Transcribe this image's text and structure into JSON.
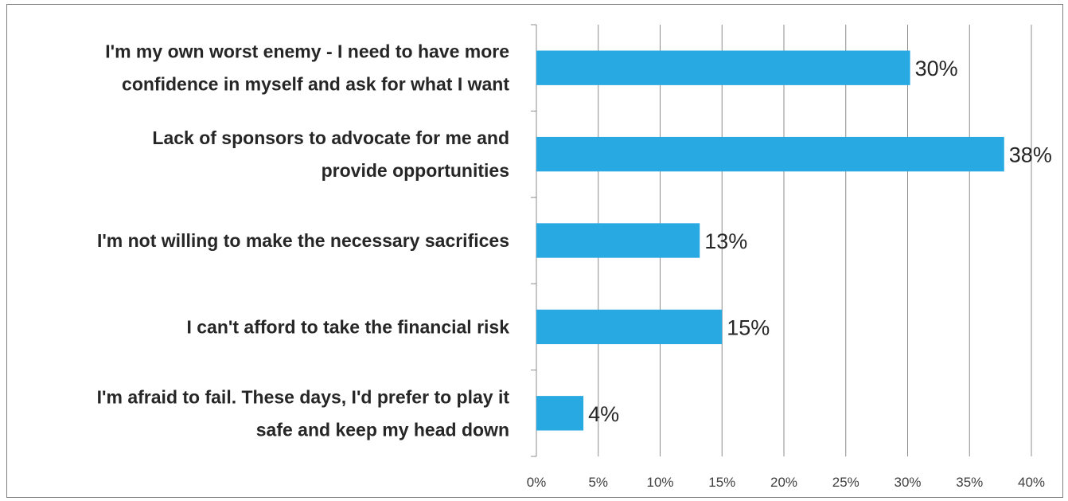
{
  "chart_data": {
    "type": "bar",
    "orientation": "horizontal",
    "categories": [
      [
        "I'm my own worst enemy - I need to have more",
        "confidence in myself and ask for what I want"
      ],
      [
        "Lack of sponsors to advocate for me and",
        "provide opportunities"
      ],
      [
        "I'm not willing to make the necessary sacrifices"
      ],
      [
        "I can't afford to take the financial risk"
      ],
      [
        "I'm afraid to fail. These days, I'd prefer to play it",
        "safe and keep my head down"
      ]
    ],
    "values": [
      30.2,
      37.8,
      13.2,
      15.0,
      3.8
    ],
    "data_labels": [
      "30%",
      "38%",
      "13%",
      "15%",
      "4%"
    ],
    "x_ticks": [
      0,
      5,
      10,
      15,
      20,
      25,
      30,
      35,
      40
    ],
    "x_tick_labels": [
      "0%",
      "5%",
      "10%",
      "15%",
      "20%",
      "25%",
      "30%",
      "35%",
      "40%"
    ],
    "xlim": [
      0,
      40
    ],
    "grid": true,
    "bar_color": "#29a9e1",
    "title": "",
    "xlabel": "",
    "ylabel": ""
  }
}
